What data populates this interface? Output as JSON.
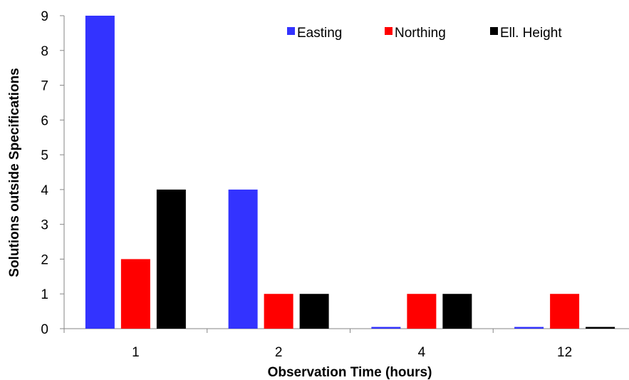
{
  "chart_data": {
    "type": "bar",
    "title": "",
    "xlabel": "Observation Time (hours)",
    "ylabel": "Solutions outside Specifications",
    "categories": [
      "1",
      "2",
      "4",
      "12"
    ],
    "series": [
      {
        "name": "Easting",
        "color": "#3333ff",
        "values": [
          9,
          4,
          0.05,
          0.05
        ]
      },
      {
        "name": "Northing",
        "color": "#ff0000",
        "values": [
          2,
          1,
          1,
          1
        ]
      },
      {
        "name": "Ell. Height",
        "color": "#000000",
        "values": [
          4,
          1,
          1,
          0.05
        ]
      }
    ],
    "ylim": [
      0,
      9
    ],
    "yticks": [
      "0",
      "1",
      "2",
      "3",
      "4",
      "5",
      "6",
      "7",
      "8",
      "9"
    ],
    "grid": false,
    "legend_position": "top-right"
  }
}
